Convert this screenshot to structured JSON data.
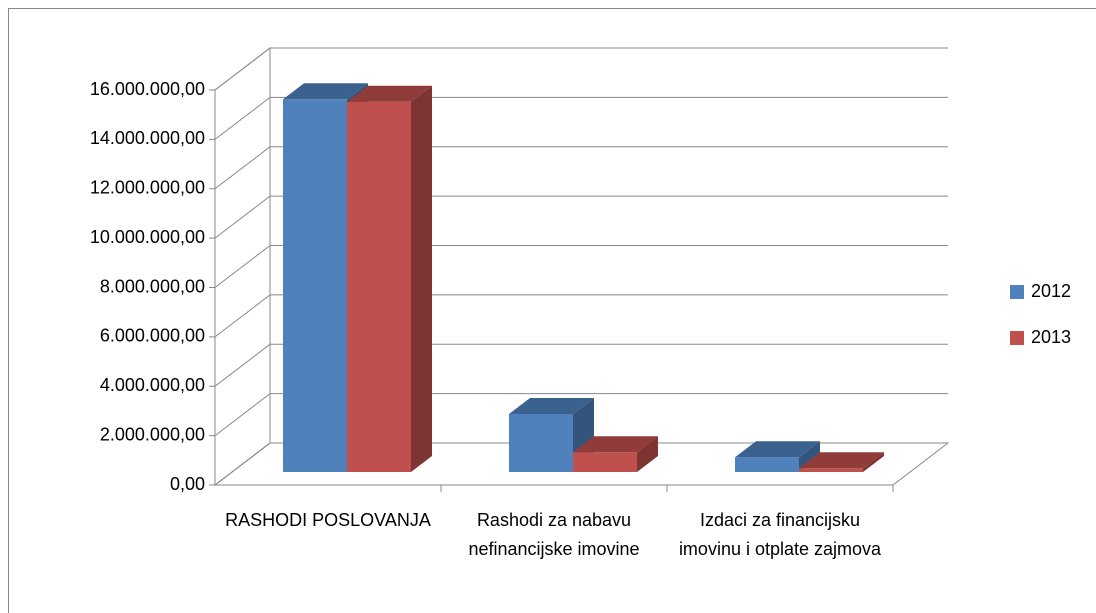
{
  "chart_data": {
    "type": "bar3d",
    "categories": [
      "RASHODI POSLOVANJA",
      "Rashodi za nabavu nefinancijske imovine",
      "Izdaci za financijsku imovinu i otplate zajmova"
    ],
    "series": [
      {
        "name": "2012",
        "color": "#4f81bd",
        "values": [
          15100000,
          2350000,
          600000
        ]
      },
      {
        "name": "2013",
        "color": "#c0504d",
        "values": [
          15000000,
          800000,
          150000
        ]
      }
    ],
    "ylim": [
      0,
      16000000
    ],
    "yticks": [
      {
        "value": 0,
        "label": "0,00"
      },
      {
        "value": 2000000,
        "label": "2.000.000,00"
      },
      {
        "value": 4000000,
        "label": "4.000.000,00"
      },
      {
        "value": 6000000,
        "label": "6.000.000,00"
      },
      {
        "value": 8000000,
        "label": "8.000.000,00"
      },
      {
        "value": 10000000,
        "label": "10.000.000,00"
      },
      {
        "value": 12000000,
        "label": "12.000.000,00"
      },
      {
        "value": 14000000,
        "label": "14.000.000,00"
      },
      {
        "value": 16000000,
        "label": "16.000.000,00"
      }
    ],
    "grid": true,
    "legend": "right"
  }
}
